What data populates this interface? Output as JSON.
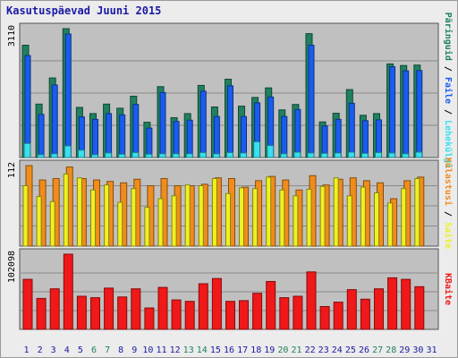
{
  "title": "Kasutuspäevad Juuni 2015",
  "colors": {
    "panel_bg": "#c0c0c0",
    "frame_bg": "#ececec",
    "hits": "#208060",
    "files": "#1a5cf0",
    "pages": "#38e0f0",
    "visits": "#f08c1c",
    "sites": "#f0f020",
    "kbytes": "#f01818",
    "weekend_day": "#208060",
    "weekday_day": "#1a1aa6",
    "grid": "#8a8a8a"
  },
  "chart_data": [
    {
      "type": "bar",
      "title": "Kasutuspäevad Juuni 2015",
      "x_categories": [
        "1",
        "2",
        "3",
        "4",
        "5",
        "6",
        "7",
        "8",
        "9",
        "10",
        "11",
        "12",
        "13",
        "14",
        "15",
        "16",
        "17",
        "18",
        "19",
        "20",
        "21",
        "22",
        "23",
        "24",
        "25",
        "26",
        "27",
        "28",
        "29",
        "30",
        "31"
      ],
      "weekend_days": [
        "6",
        "7",
        "13",
        "14",
        "20",
        "21",
        "27",
        "28"
      ],
      "y_tick_label": "3110",
      "ylim": [
        0,
        3110
      ],
      "series": [
        {
          "name": "Päringuid",
          "color": "#208060",
          "values": [
            2710,
            1290,
            1920,
            3110,
            1210,
            1060,
            1290,
            1190,
            1480,
            850,
            1710,
            960,
            1060,
            1740,
            1220,
            1890,
            1240,
            1450,
            1680,
            1150,
            1280,
            2990,
            860,
            1070,
            1640,
            1020,
            1060,
            2260,
            2220,
            2230,
            0
          ]
        },
        {
          "name": "Faile",
          "color": "#1a5cf0",
          "values": [
            2460,
            1040,
            1750,
            2980,
            980,
            920,
            1060,
            1030,
            1280,
            710,
            1570,
            870,
            900,
            1600,
            990,
            1730,
            990,
            1320,
            1460,
            990,
            1160,
            2710,
            760,
            920,
            1310,
            890,
            910,
            2190,
            2090,
            2100,
            0
          ]
        },
        {
          "name": "Lehekülgi",
          "color": "#38e0f0",
          "values": [
            340,
            70,
            90,
            280,
            180,
            70,
            110,
            80,
            120,
            80,
            90,
            90,
            90,
            120,
            90,
            120,
            110,
            380,
            290,
            90,
            130,
            110,
            100,
            110,
            130,
            100,
            120,
            110,
            90,
            130,
            0
          ]
        }
      ]
    },
    {
      "type": "bar",
      "y_tick_label": "112",
      "ylim": [
        0,
        112
      ],
      "series": [
        {
          "name": "Külastusi",
          "color": "#f08c1c",
          "values": [
            112,
            92,
            94,
            110,
            94,
            92,
            90,
            88,
            93,
            84,
            94,
            84,
            84,
            86,
            95,
            94,
            82,
            91,
            97,
            92,
            78,
            98,
            85,
            93,
            95,
            91,
            88,
            66,
            91,
            96,
            0
          ]
        },
        {
          "name": "Saite",
          "color": "#f0f020",
          "values": [
            84,
            69,
            62,
            100,
            95,
            78,
            85,
            61,
            80,
            54,
            66,
            70,
            85,
            84,
            94,
            73,
            81,
            80,
            96,
            78,
            70,
            79,
            83,
            95,
            70,
            82,
            74,
            60,
            80,
            94,
            0
          ]
        }
      ]
    },
    {
      "type": "bar",
      "y_tick_label": "102098",
      "ylim": [
        0,
        102098
      ],
      "series": [
        {
          "name": "KBaite",
          "color": "#f01818",
          "values": [
            68000,
            42000,
            55000,
            102098,
            45000,
            43000,
            56000,
            44000,
            55000,
            29000,
            57000,
            40000,
            38000,
            62000,
            69000,
            38000,
            39000,
            49000,
            65000,
            43000,
            45000,
            78000,
            31000,
            37000,
            54000,
            41000,
            55000,
            70000,
            68000,
            58000,
            0
          ]
        }
      ]
    }
  ],
  "legend_right": {
    "top": [
      {
        "text": "Päringuid",
        "color": "#208060"
      },
      {
        "text": " / ",
        "color": "#000000"
      },
      {
        "text": "Faile",
        "color": "#1a5cf0"
      },
      {
        "text": " / ",
        "color": "#000000"
      },
      {
        "text": "Lehekülgi",
        "color": "#38e0f0"
      }
    ],
    "middle": [
      {
        "text": "Külastusi",
        "color": "#f08c1c"
      },
      {
        "text": " / ",
        "color": "#000000"
      },
      {
        "text": "Saite",
        "color": "#f0f020"
      }
    ],
    "bottom": [
      {
        "text": "KBaite",
        "color": "#f01818"
      }
    ]
  }
}
